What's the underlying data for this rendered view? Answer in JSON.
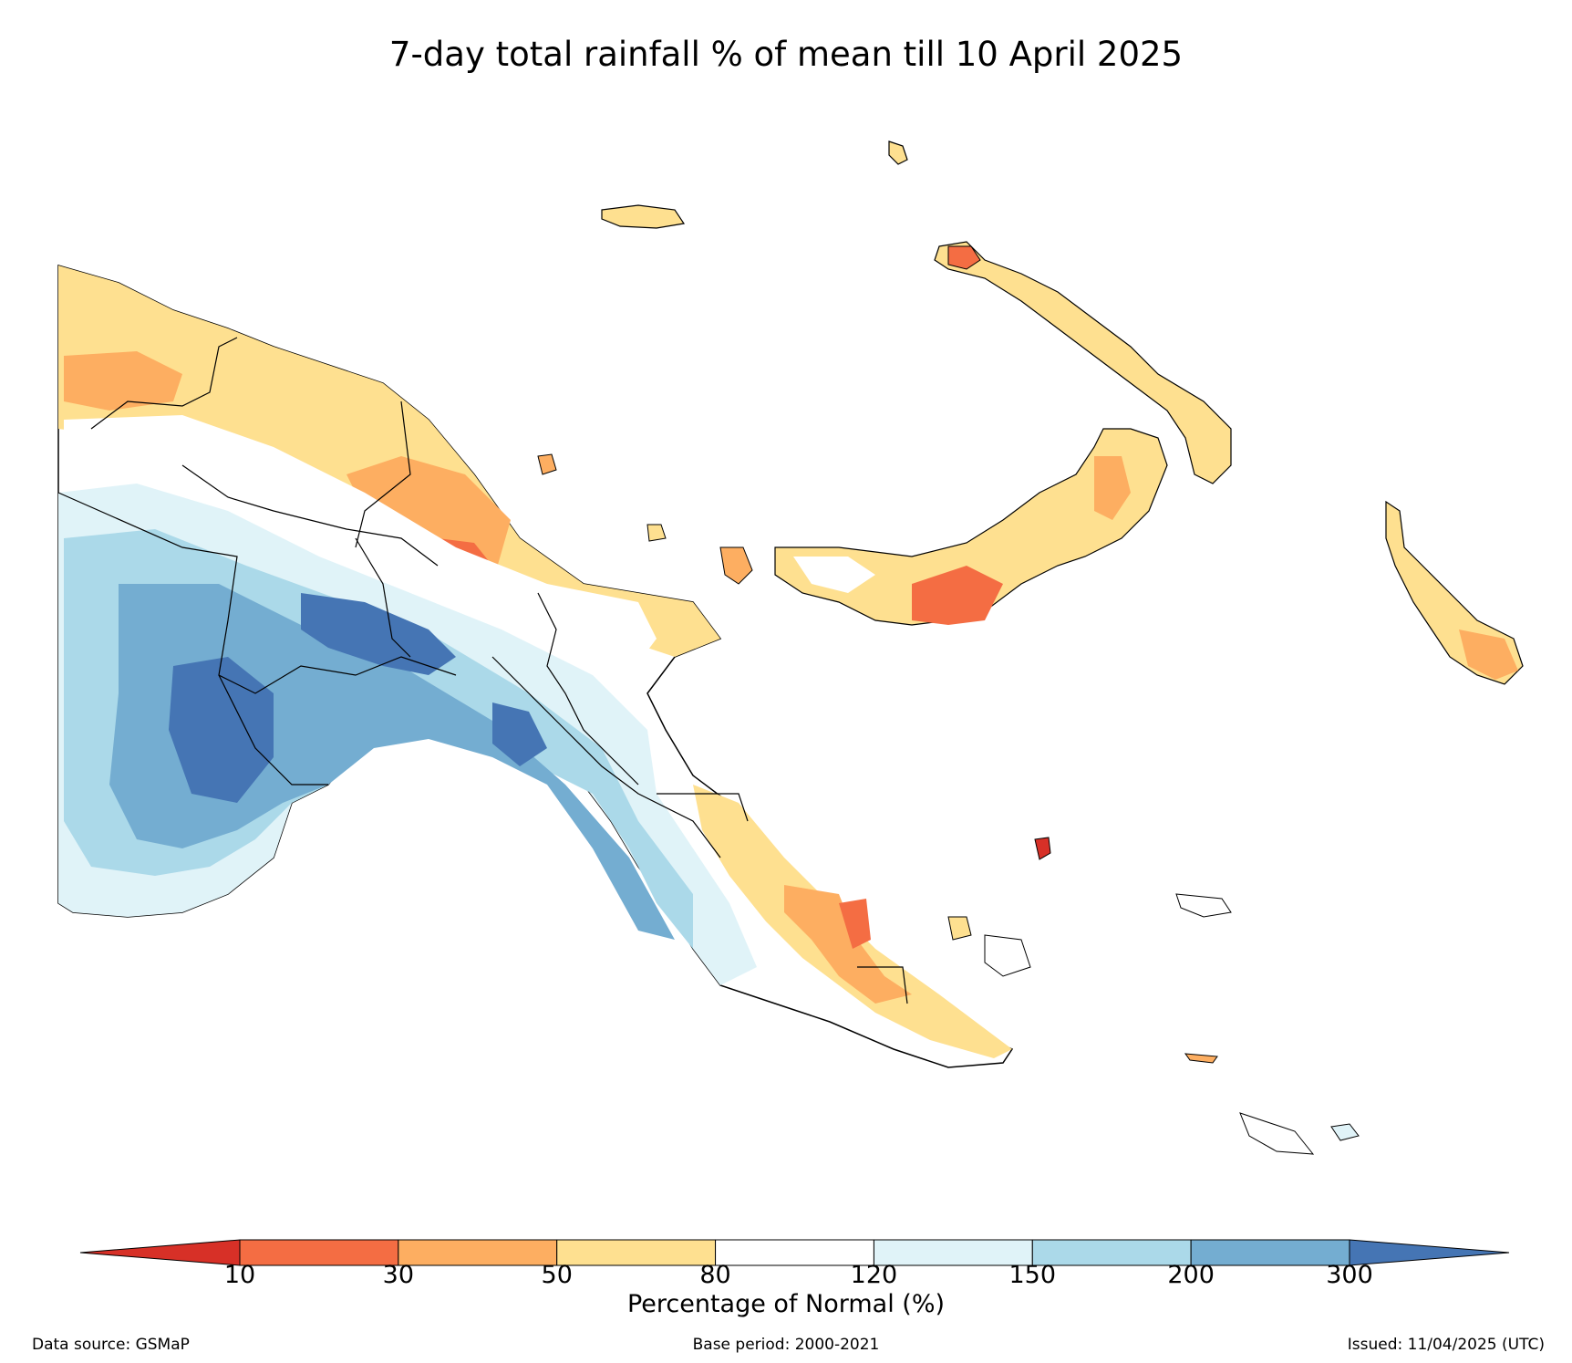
{
  "title": "7-day total rainfall % of mean till 10 April 2025",
  "colorbar": {
    "label": "Percentage of Normal (%)",
    "ticks": [
      "10",
      "30",
      "50",
      "80",
      "120",
      "150",
      "200",
      "300"
    ],
    "colors": [
      "#d73027",
      "#f46d43",
      "#fdae61",
      "#fee090",
      "#ffffff",
      "#e0f3f8",
      "#abd9e9",
      "#74add1",
      "#4575b4"
    ],
    "extend": "both"
  },
  "footer": {
    "source": "Data source: GSMaP",
    "base_period": "Base period: 2000-2021",
    "issued": "Issued: 11/04/2025 (UTC)"
  }
}
